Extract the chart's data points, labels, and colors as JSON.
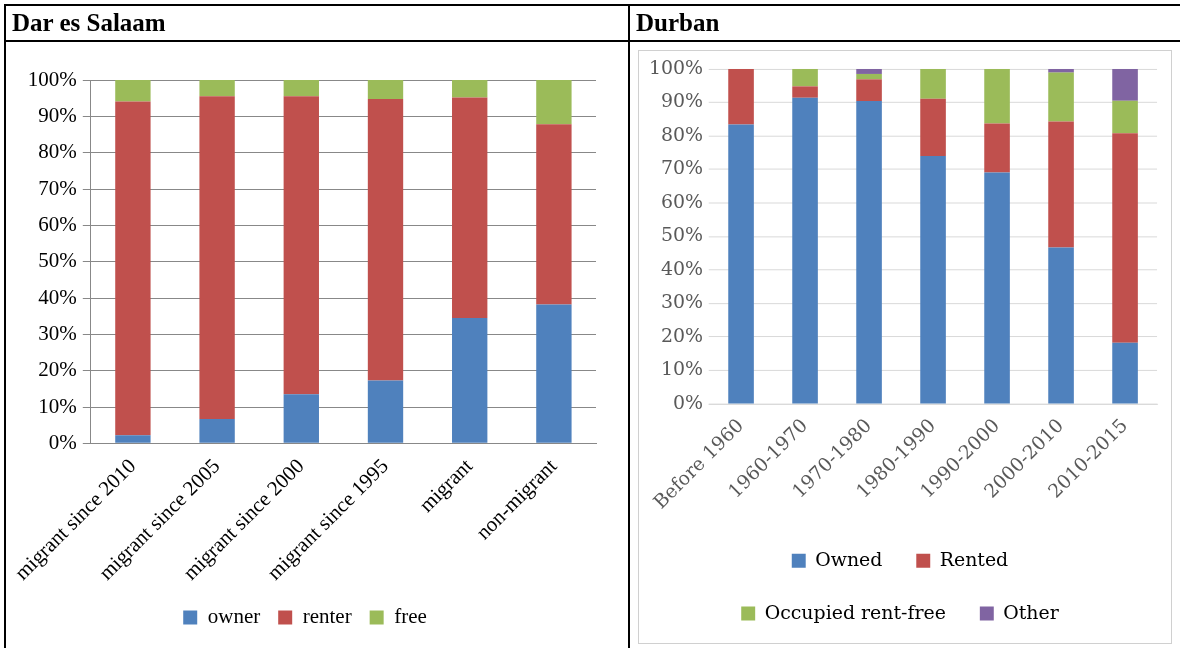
{
  "chart_data": [
    {
      "type": "bar",
      "title": "Dar es Salaam",
      "stacked": true,
      "grid": "y",
      "legend": "bottom",
      "categories": [
        "migrant since 2010",
        "migrant since 2005",
        "migrant since 2000",
        "migrant since 1995",
        "migrant",
        "non-migrant"
      ],
      "series": [
        {
          "name": "owner",
          "color": "#4f81bd",
          "values": [
            2.2,
            6.7,
            13.5,
            17.3,
            34.5,
            38.2
          ]
        },
        {
          "name": "renter",
          "color": "#c0504d",
          "values": [
            91.9,
            88.8,
            82.0,
            77.5,
            60.7,
            49.6
          ]
        },
        {
          "name": "free",
          "color": "#9bbb59",
          "values": [
            5.9,
            4.5,
            4.5,
            5.2,
            4.8,
            12.2
          ]
        }
      ],
      "ylim": [
        0,
        100
      ],
      "yticks": [
        {
          "value": 0,
          "label": "0%"
        },
        {
          "value": 10,
          "label": "10%"
        },
        {
          "value": 20,
          "label": "20%"
        },
        {
          "value": 30,
          "label": "30%"
        },
        {
          "value": 40,
          "label": "40%"
        },
        {
          "value": 50,
          "label": "50%"
        },
        {
          "value": 60,
          "label": "60%"
        },
        {
          "value": 70,
          "label": "70%"
        },
        {
          "value": 80,
          "label": "80%"
        },
        {
          "value": 90,
          "label": "90%"
        },
        {
          "value": 100,
          "label": "100%"
        }
      ]
    },
    {
      "type": "bar",
      "title": "Durban",
      "stacked": true,
      "grid": "y",
      "legend": "bottom",
      "categories": [
        "Before 1960",
        "1960-1970",
        "1970-1980",
        "1980-1990",
        "1990-2000",
        "2000-2010",
        "2010-2015"
      ],
      "series": [
        {
          "name": "Owned",
          "color": "#4f81bd",
          "values": [
            83.4,
            91.4,
            90.4,
            74.0,
            69.1,
            46.7,
            18.3
          ]
        },
        {
          "name": "Rented",
          "color": "#c0504d",
          "values": [
            16.6,
            3.4,
            6.5,
            17.1,
            14.6,
            37.6,
            62.5
          ]
        },
        {
          "name": "Occupied rent-free",
          "color": "#9bbb59",
          "values": [
            0,
            5.2,
            1.6,
            8.9,
            16.3,
            14.6,
            9.7
          ]
        },
        {
          "name": "Other",
          "color": "#8064a2",
          "values": [
            0,
            0,
            1.5,
            0,
            0,
            1.1,
            9.5
          ]
        }
      ],
      "ylim": [
        0,
        100
      ],
      "yticks": [
        {
          "value": 0,
          "label": "0%"
        },
        {
          "value": 10,
          "label": "10%"
        },
        {
          "value": 20,
          "label": "20%"
        },
        {
          "value": 30,
          "label": "30%"
        },
        {
          "value": 40,
          "label": "40%"
        },
        {
          "value": 50,
          "label": "50%"
        },
        {
          "value": 60,
          "label": "60%"
        },
        {
          "value": 70,
          "label": "70%"
        },
        {
          "value": 80,
          "label": "80%"
        },
        {
          "value": 90,
          "label": "90%"
        },
        {
          "value": 100,
          "label": "100%"
        }
      ]
    }
  ]
}
